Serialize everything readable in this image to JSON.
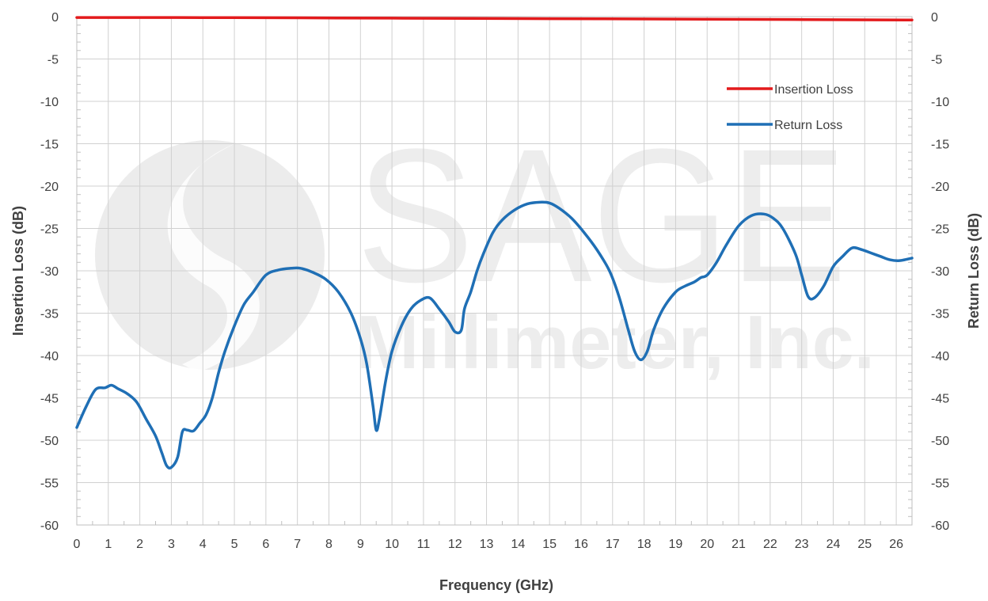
{
  "chart_data": {
    "type": "line",
    "title": "",
    "xlabel": "Frequency (GHz)",
    "ylabel_left": "Insertion Loss (dB)",
    "ylabel_right": "Return Loss (dB)",
    "xlim": [
      0,
      26.5
    ],
    "ylim": [
      -60,
      0
    ],
    "x_ticks": [
      0,
      1,
      2,
      3,
      4,
      5,
      6,
      7,
      8,
      9,
      10,
      11,
      12,
      13,
      14,
      15,
      16,
      17,
      18,
      19,
      20,
      21,
      22,
      23,
      24,
      25,
      26
    ],
    "y_ticks": [
      0,
      -5,
      -10,
      -15,
      -20,
      -25,
      -30,
      -35,
      -40,
      -45,
      -50,
      -55,
      -60
    ],
    "grid": true,
    "legend_position": "top-right",
    "watermark": {
      "line1": "SAGE",
      "line2": "Millimeter, Inc."
    },
    "series": [
      {
        "name": "Insertion Loss",
        "color": "#e31a1c",
        "axis": "left",
        "x": [
          0,
          5,
          10,
          15,
          20,
          26.5
        ],
        "y": [
          -0.1,
          -0.12,
          -0.18,
          -0.24,
          -0.3,
          -0.4
        ]
      },
      {
        "name": "Return Loss",
        "color": "#1f6fb5",
        "axis": "right",
        "x": [
          0,
          0.3,
          0.6,
          0.9,
          1.1,
          1.3,
          1.6,
          1.9,
          2.2,
          2.5,
          2.7,
          2.85,
          3.0,
          3.2,
          3.35,
          3.5,
          3.7,
          3.9,
          4.1,
          4.3,
          4.5,
          4.7,
          5.0,
          5.3,
          5.6,
          6.0,
          6.4,
          6.8,
          7.1,
          7.5,
          7.9,
          8.3,
          8.7,
          9.0,
          9.2,
          9.4,
          9.5,
          9.6,
          9.8,
          10.0,
          10.3,
          10.6,
          10.9,
          11.2,
          11.5,
          11.8,
          12.0,
          12.2,
          12.3,
          12.5,
          12.7,
          12.9,
          13.2,
          13.5,
          13.9,
          14.3,
          14.7,
          15.0,
          15.3,
          15.7,
          16.1,
          16.5,
          16.9,
          17.2,
          17.5,
          17.7,
          17.9,
          18.1,
          18.3,
          18.6,
          19.0,
          19.3,
          19.6,
          19.8,
          20.0,
          20.3,
          20.6,
          21.0,
          21.4,
          21.8,
          22.1,
          22.4,
          22.8,
          23.0,
          23.2,
          23.4,
          23.7,
          24.0,
          24.3,
          24.6,
          24.9,
          25.2,
          25.5,
          25.8,
          26.1,
          26.5
        ],
        "y": [
          -48.5,
          -46.0,
          -44.0,
          -43.8,
          -43.5,
          -43.9,
          -44.5,
          -45.5,
          -47.5,
          -49.5,
          -51.5,
          -53.0,
          -53.2,
          -52.0,
          -49.0,
          -48.8,
          -48.9,
          -48.0,
          -47.0,
          -45.0,
          -42.0,
          -39.5,
          -36.5,
          -34.0,
          -32.5,
          -30.5,
          -29.9,
          -29.7,
          -29.7,
          -30.2,
          -31.0,
          -32.5,
          -35.0,
          -38.0,
          -41.0,
          -46.0,
          -48.8,
          -47.5,
          -43.0,
          -39.5,
          -36.5,
          -34.5,
          -33.5,
          -33.2,
          -34.5,
          -36.0,
          -37.2,
          -37.0,
          -34.5,
          -32.5,
          -30.0,
          -28.0,
          -25.5,
          -24.0,
          -22.8,
          -22.1,
          -21.9,
          -22.0,
          -22.6,
          -23.8,
          -25.5,
          -27.5,
          -30.0,
          -33.0,
          -37.0,
          -39.5,
          -40.5,
          -39.5,
          -37.0,
          -34.5,
          -32.5,
          -31.8,
          -31.3,
          -30.8,
          -30.5,
          -29.0,
          -27.0,
          -24.7,
          -23.5,
          -23.3,
          -23.8,
          -25.0,
          -28.0,
          -30.5,
          -33.0,
          -33.2,
          -31.8,
          -29.5,
          -28.3,
          -27.3,
          -27.5,
          -27.9,
          -28.3,
          -28.7,
          -28.8,
          -28.5
        ]
      }
    ]
  }
}
